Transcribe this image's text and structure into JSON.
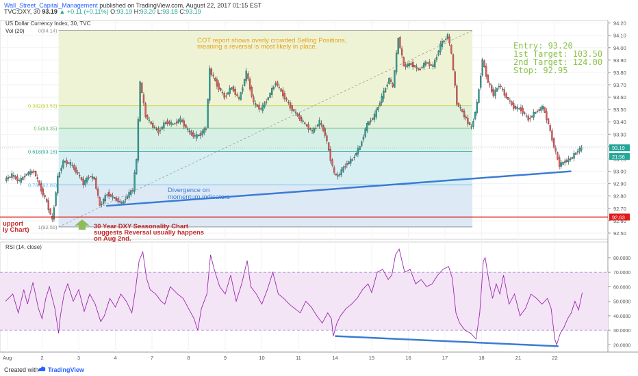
{
  "header": {
    "author": "Wall_Street_Capital_Management",
    "published": "published on TradingView.com, August 22, 2017 01:15 EST",
    "symbol": "TVC:DXY, 30",
    "last": "93.19",
    "change": "+0.11 (+0.11%)",
    "o_label": "O:",
    "o": "93.19",
    "h_label": "H:",
    "h": "93.20",
    "l_label": "L:",
    "l": "93.18",
    "c_label": "C:",
    "c": "93.19"
  },
  "chart_data": [
    {
      "type": "candlestick",
      "title": "US Dollar Currency Index, 30, TVC",
      "volume_label": "Vol (20)",
      "ylim": [
        92.45,
        94.22
      ],
      "y_ticks": [
        "94.20",
        "94.10",
        "94.00",
        "93.90",
        "93.80",
        "93.70",
        "93.60",
        "93.50",
        "93.40",
        "93.30",
        "93.20",
        "93.10",
        "93.00",
        "92.90",
        "92.80",
        "92.70",
        "92.60",
        "92.50"
      ],
      "x_ticks": [
        "Aug",
        "2",
        "3",
        "4",
        "7",
        "8",
        "9",
        "10",
        "11",
        "14",
        "15",
        "16",
        "17",
        "18",
        "21",
        "22"
      ],
      "price_badges": [
        {
          "value": "93.19",
          "color": "#26a69a"
        },
        {
          "value": "21:56",
          "color": "#26a69a"
        },
        {
          "value": "92.63",
          "color": "#e01b1b"
        }
      ],
      "fib_levels": [
        {
          "label": "0(94.14)",
          "value": 94.14
        },
        {
          "label": "0.382(93.53)",
          "value": 93.53
        },
        {
          "label": "0.5(93.35)",
          "value": 93.35
        },
        {
          "label": "0.618(93.16)",
          "value": 93.16
        },
        {
          "label": "0.786(92.89)",
          "value": 92.89
        },
        {
          "label": "1(92.55)",
          "value": 92.55
        }
      ],
      "support_level": 92.63,
      "close_path": [
        [
          0,
          92.93
        ],
        [
          0.2,
          92.97
        ],
        [
          0.4,
          92.92
        ],
        [
          0.6,
          92.98
        ],
        [
          0.8,
          93.0
        ],
        [
          1.0,
          92.85
        ],
        [
          1.15,
          92.75
        ],
        [
          1.3,
          92.6
        ],
        [
          1.45,
          92.95
        ],
        [
          1.6,
          93.08
        ],
        [
          1.8,
          93.06
        ],
        [
          2.0,
          92.98
        ],
        [
          2.15,
          92.9
        ],
        [
          2.3,
          92.96
        ],
        [
          2.45,
          92.94
        ],
        [
          2.6,
          92.72
        ],
        [
          2.8,
          92.82
        ],
        [
          3.0,
          92.78
        ],
        [
          3.2,
          92.74
        ],
        [
          3.4,
          92.82
        ],
        [
          3.5,
          92.85
        ],
        [
          3.6,
          93.1
        ],
        [
          3.7,
          93.72
        ],
        [
          3.85,
          93.45
        ],
        [
          4.0,
          93.38
        ],
        [
          4.2,
          93.32
        ],
        [
          4.4,
          93.4
        ],
        [
          4.6,
          93.38
        ],
        [
          4.8,
          93.42
        ],
        [
          5.0,
          93.33
        ],
        [
          5.2,
          93.28
        ],
        [
          5.35,
          93.3
        ],
        [
          5.5,
          93.35
        ],
        [
          5.6,
          93.82
        ],
        [
          5.8,
          93.7
        ],
        [
          6.0,
          93.6
        ],
        [
          6.2,
          93.68
        ],
        [
          6.4,
          93.58
        ],
        [
          6.6,
          93.8
        ],
        [
          6.8,
          93.55
        ],
        [
          7.0,
          93.5
        ],
        [
          7.2,
          93.6
        ],
        [
          7.4,
          93.72
        ],
        [
          7.6,
          93.62
        ],
        [
          7.8,
          93.52
        ],
        [
          8.0,
          93.45
        ],
        [
          8.2,
          93.38
        ],
        [
          8.4,
          93.32
        ],
        [
          8.6,
          93.4
        ],
        [
          8.75,
          93.3
        ],
        [
          8.9,
          93.1
        ],
        [
          9.0,
          92.98
        ],
        [
          9.1,
          92.96
        ],
        [
          9.3,
          93.05
        ],
        [
          9.5,
          93.1
        ],
        [
          9.7,
          93.2
        ],
        [
          9.9,
          93.38
        ],
        [
          10.1,
          93.45
        ],
        [
          10.3,
          93.6
        ],
        [
          10.5,
          93.75
        ],
        [
          10.6,
          93.68
        ],
        [
          10.75,
          94.08
        ],
        [
          10.9,
          93.85
        ],
        [
          11.1,
          93.87
        ],
        [
          11.3,
          93.82
        ],
        [
          11.5,
          93.88
        ],
        [
          11.7,
          93.85
        ],
        [
          11.9,
          94.02
        ],
        [
          12.1,
          94.1
        ],
        [
          12.2,
          93.95
        ],
        [
          12.35,
          93.55
        ],
        [
          12.5,
          93.48
        ],
        [
          12.6,
          93.42
        ],
        [
          12.75,
          93.35
        ],
        [
          12.9,
          93.55
        ],
        [
          13.05,
          93.9
        ],
        [
          13.2,
          93.72
        ],
        [
          13.35,
          93.62
        ],
        [
          13.5,
          93.7
        ],
        [
          13.7,
          93.6
        ],
        [
          13.9,
          93.52
        ],
        [
          14.1,
          93.5
        ],
        [
          14.3,
          93.42
        ],
        [
          14.5,
          93.48
        ],
        [
          14.7,
          93.52
        ],
        [
          14.85,
          93.38
        ],
        [
          15.0,
          93.2
        ],
        [
          15.15,
          93.05
        ],
        [
          15.3,
          93.08
        ],
        [
          15.45,
          93.1
        ],
        [
          15.6,
          93.15
        ],
        [
          15.75,
          93.19
        ]
      ]
    },
    {
      "type": "line",
      "title": "RSI (14, close)",
      "ylim": [
        15,
        88
      ],
      "y_ticks": [
        "80.0000",
        "70.0000",
        "60.0000",
        "50.0000",
        "40.0000",
        "30.0000",
        "20.0000"
      ],
      "band": [
        30,
        70
      ],
      "rsi_path": [
        [
          0,
          50
        ],
        [
          0.2,
          55
        ],
        [
          0.35,
          42
        ],
        [
          0.5,
          58
        ],
        [
          0.6,
          48
        ],
        [
          0.75,
          63
        ],
        [
          0.9,
          45
        ],
        [
          1.0,
          38
        ],
        [
          1.1,
          52
        ],
        [
          1.2,
          60
        ],
        [
          1.35,
          45
        ],
        [
          1.45,
          28
        ],
        [
          1.5,
          40
        ],
        [
          1.6,
          55
        ],
        [
          1.7,
          62
        ],
        [
          1.85,
          50
        ],
        [
          2.0,
          58
        ],
        [
          2.15,
          43
        ],
        [
          2.3,
          55
        ],
        [
          2.45,
          48
        ],
        [
          2.6,
          36
        ],
        [
          2.7,
          40
        ],
        [
          2.85,
          52
        ],
        [
          3.0,
          46
        ],
        [
          3.15,
          55
        ],
        [
          3.3,
          50
        ],
        [
          3.45,
          42
        ],
        [
          3.55,
          58
        ],
        [
          3.65,
          78
        ],
        [
          3.75,
          84
        ],
        [
          3.85,
          66
        ],
        [
          3.95,
          58
        ],
        [
          4.1,
          55
        ],
        [
          4.25,
          50
        ],
        [
          4.35,
          48
        ],
        [
          4.5,
          60
        ],
        [
          4.7,
          55
        ],
        [
          4.85,
          52
        ],
        [
          5.0,
          45
        ],
        [
          5.15,
          38
        ],
        [
          5.25,
          30
        ],
        [
          5.35,
          45
        ],
        [
          5.5,
          55
        ],
        [
          5.6,
          82
        ],
        [
          5.7,
          72
        ],
        [
          5.85,
          60
        ],
        [
          6.0,
          55
        ],
        [
          6.15,
          68
        ],
        [
          6.3,
          50
        ],
        [
          6.45,
          62
        ],
        [
          6.6,
          78
        ],
        [
          6.7,
          60
        ],
        [
          6.85,
          55
        ],
        [
          7.0,
          48
        ],
        [
          7.15,
          58
        ],
        [
          7.3,
          70
        ],
        [
          7.45,
          55
        ],
        [
          7.6,
          52
        ],
        [
          7.75,
          48
        ],
        [
          7.9,
          45
        ],
        [
          8.05,
          42
        ],
        [
          8.2,
          50
        ],
        [
          8.35,
          46
        ],
        [
          8.5,
          40
        ],
        [
          8.65,
          35
        ],
        [
          8.8,
          42
        ],
        [
          8.9,
          38
        ],
        [
          8.95,
          26
        ],
        [
          9.05,
          35
        ],
        [
          9.15,
          40
        ],
        [
          9.3,
          45
        ],
        [
          9.45,
          48
        ],
        [
          9.6,
          52
        ],
        [
          9.75,
          58
        ],
        [
          9.9,
          62
        ],
        [
          10.0,
          56
        ],
        [
          10.15,
          70
        ],
        [
          10.3,
          72
        ],
        [
          10.45,
          65
        ],
        [
          10.55,
          68
        ],
        [
          10.65,
          82
        ],
        [
          10.75,
          86
        ],
        [
          10.9,
          70
        ],
        [
          11.05,
          72
        ],
        [
          11.2,
          62
        ],
        [
          11.35,
          65
        ],
        [
          11.5,
          60
        ],
        [
          11.65,
          62
        ],
        [
          11.8,
          68
        ],
        [
          11.95,
          72
        ],
        [
          12.1,
          74
        ],
        [
          12.2,
          66
        ],
        [
          12.3,
          42
        ],
        [
          12.4,
          35
        ],
        [
          12.55,
          30
        ],
        [
          12.7,
          28
        ],
        [
          12.85,
          24
        ],
        [
          12.95,
          42
        ],
        [
          13.05,
          78
        ],
        [
          13.1,
          80
        ],
        [
          13.2,
          64
        ],
        [
          13.3,
          52
        ],
        [
          13.4,
          62
        ],
        [
          13.5,
          55
        ],
        [
          13.6,
          68
        ],
        [
          13.75,
          48
        ],
        [
          13.9,
          55
        ],
        [
          14.05,
          40
        ],
        [
          14.2,
          45
        ],
        [
          14.35,
          55
        ],
        [
          14.5,
          52
        ],
        [
          14.65,
          48
        ],
        [
          14.8,
          52
        ],
        [
          14.9,
          45
        ],
        [
          15.0,
          24
        ],
        [
          15.05,
          20
        ],
        [
          15.15,
          28
        ],
        [
          15.25,
          32
        ],
        [
          15.35,
          38
        ],
        [
          15.45,
          42
        ],
        [
          15.55,
          50
        ],
        [
          15.65,
          44
        ],
        [
          15.75,
          56
        ]
      ]
    }
  ],
  "annotations": {
    "cot": [
      "COT report shows overly crowded Selling Positions,",
      "meaning a reversal is most likely in place."
    ],
    "trade": [
      "Entry: 93.20",
      "1st Target: 103.50",
      "2nd Target: 124.00",
      "Stop: 92.95"
    ],
    "divergence": [
      "Divergence on",
      "momentum indicators"
    ],
    "seasonality": [
      "30 Year DXY Seasonality Chart",
      "suggests Reversal usually happens",
      "on Aug 2nd."
    ],
    "support": [
      "upport",
      "ly Chart)"
    ]
  },
  "colors": {
    "up": "#26a69a",
    "down": "#ef5350",
    "trendline": "#3a7bd5",
    "support": "#e01b1b",
    "rsi": "#9c27b0",
    "cot_text": "#e8a317",
    "trade_text": "#8bc34a"
  },
  "footer": {
    "created": "Created with",
    "brand": "TradingView"
  }
}
